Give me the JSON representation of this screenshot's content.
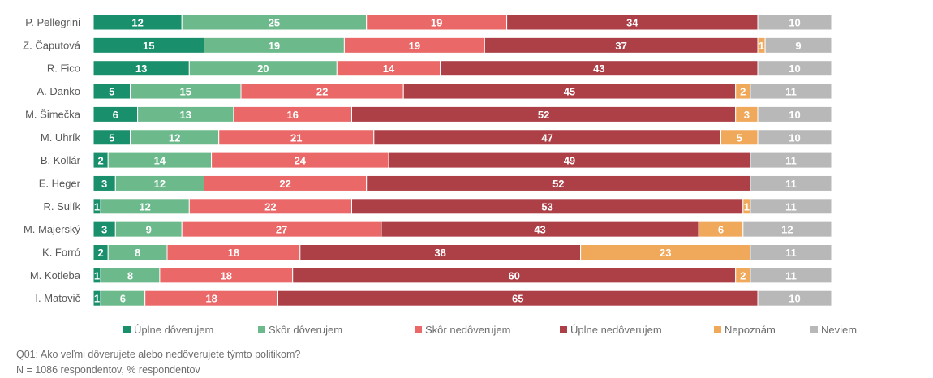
{
  "chart_data": {
    "type": "bar",
    "orientation": "horizontal",
    "stacked": true,
    "title": "",
    "xlabel": "",
    "ylabel": "",
    "xlim": [
      0,
      100
    ],
    "grid": false,
    "legend_position": "bottom",
    "categories": [
      "P. Pellegrini",
      "Z. Čaputová",
      "R. Fico",
      "A. Danko",
      "M. Šimečka",
      "M. Uhrík",
      "B. Kollár",
      "E. Heger",
      "R. Sulík",
      "M. Majerský",
      "K. Forró",
      "M. Kotleba",
      "I. Matovič"
    ],
    "series": [
      {
        "name": "Úplne dôverujem",
        "color": "#1a8f6c",
        "values": [
          12,
          15,
          13,
          5,
          6,
          5,
          2,
          3,
          1,
          3,
          2,
          1,
          1
        ]
      },
      {
        "name": "Skôr dôverujem",
        "color": "#6cba8c",
        "values": [
          25,
          19,
          20,
          15,
          13,
          12,
          14,
          12,
          12,
          9,
          8,
          8,
          6
        ]
      },
      {
        "name": "Skôr nedôverujem",
        "color": "#ea6868",
        "values": [
          19,
          19,
          14,
          22,
          16,
          21,
          24,
          22,
          22,
          27,
          18,
          18,
          18
        ]
      },
      {
        "name": "Úplne nedôverujem",
        "color": "#ad4047",
        "values": [
          34,
          37,
          43,
          45,
          52,
          47,
          49,
          52,
          53,
          43,
          38,
          60,
          65
        ]
      },
      {
        "name": "Nepoznám",
        "color": "#f0a85a",
        "values": [
          0,
          1,
          0,
          2,
          3,
          5,
          0,
          0,
          1,
          6,
          23,
          2,
          0
        ]
      },
      {
        "name": "Neviem",
        "color": "#b8b8b8",
        "values": [
          10,
          9,
          10,
          11,
          10,
          10,
          11,
          11,
          11,
          12,
          11,
          11,
          10
        ]
      }
    ]
  },
  "notes": {
    "question": "Q01: Ako veľmi dôverujete alebo nedôverujete týmto politikom?",
    "sample": "N = 1086 respondentov, % respondentov"
  }
}
